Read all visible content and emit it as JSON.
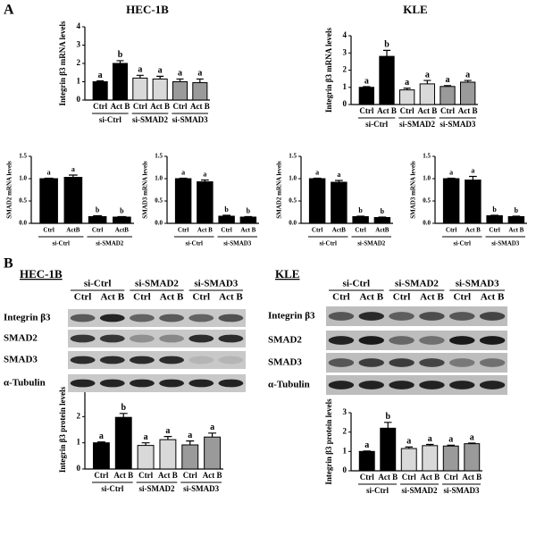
{
  "figure": {
    "panel_a": "A",
    "panel_b": "B"
  },
  "chart_data": [
    {
      "type": "bar",
      "title": "HEC-1B",
      "ylabel": "Integrin β3 mRNA levels",
      "categories": [
        "Ctrl",
        "Act B",
        "Ctrl",
        "Act B",
        "Ctrl",
        "Act B"
      ],
      "groups": [
        "si-Ctrl",
        "si-SMAD2",
        "si-SMAD3"
      ],
      "values": [
        1.0,
        2.0,
        1.2,
        1.15,
        1.0,
        0.95
      ],
      "errors": [
        0.05,
        0.15,
        0.15,
        0.15,
        0.15,
        0.2
      ],
      "annotations": [
        "a",
        "b",
        "a",
        "a",
        "a",
        "a"
      ],
      "colors": [
        "#000000",
        "#000000",
        "#d9d9d9",
        "#d9d9d9",
        "#9a9a9a",
        "#9a9a9a"
      ],
      "ylim": [
        0,
        4
      ],
      "yticks": [
        0,
        1,
        2,
        3,
        4
      ]
    },
    {
      "type": "bar",
      "title": "KLE",
      "ylabel": "Integrin β3 mRNA levels",
      "categories": [
        "Ctrl",
        "Act B",
        "Ctrl",
        "Act B",
        "Ctrl",
        "Act B"
      ],
      "groups": [
        "si-Ctrl",
        "si-SMAD2",
        "si-SMAD3"
      ],
      "values": [
        1.0,
        2.8,
        0.85,
        1.2,
        1.05,
        1.3
      ],
      "errors": [
        0.04,
        0.35,
        0.1,
        0.2,
        0.05,
        0.1
      ],
      "annotations": [
        "a",
        "b",
        "a",
        "a",
        "a",
        "a"
      ],
      "colors": [
        "#000000",
        "#000000",
        "#d9d9d9",
        "#d9d9d9",
        "#9a9a9a",
        "#9a9a9a"
      ],
      "ylim": [
        0,
        4
      ],
      "yticks": [
        0,
        1,
        2,
        3,
        4
      ]
    },
    {
      "type": "bar",
      "ylabel": "SMAD2 mRNA levels",
      "categories": [
        "Ctrl",
        "ActB",
        "Ctrl",
        "ActB"
      ],
      "groups": [
        "si-Ctrl",
        "si-SMAD2"
      ],
      "values": [
        1.0,
        1.03,
        0.15,
        0.14
      ],
      "errors": [
        0.01,
        0.05,
        0.02,
        0.01
      ],
      "annotations": [
        "a",
        "a",
        "b",
        "b"
      ],
      "color": "#000000",
      "ylim": [
        0,
        1.5
      ],
      "yticks": [
        {
          "value": 0,
          "label": "0.0"
        },
        {
          "value": 0.5,
          "label": "0.5"
        },
        {
          "value": 1,
          "label": "1.0"
        },
        {
          "value": 1.5,
          "label": "1.5"
        }
      ]
    },
    {
      "type": "bar",
      "ylabel": "SMAD3 mRNA levels",
      "categories": [
        "Ctrl",
        "Act B",
        "Ctrl",
        "Act B"
      ],
      "groups": [
        "si-Ctrl",
        "si-SMAD3"
      ],
      "values": [
        1.0,
        0.93,
        0.16,
        0.14
      ],
      "errors": [
        0.01,
        0.04,
        0.02,
        0.01
      ],
      "annotations": [
        "a",
        "a",
        "b",
        "b"
      ],
      "color": "#000000",
      "ylim": [
        0,
        1.5
      ],
      "yticks": [
        {
          "value": 0,
          "label": "0.0"
        },
        {
          "value": 0.5,
          "label": "0.5"
        },
        {
          "value": 1,
          "label": "1.0"
        },
        {
          "value": 1.5,
          "label": "1.5"
        }
      ]
    },
    {
      "type": "bar",
      "ylabel": "SMAD2 mRNA levels",
      "categories": [
        "Ctrl",
        "ActB",
        "Ctrl",
        "ActB"
      ],
      "groups": [
        "si-Ctrl",
        "si-SMAD2"
      ],
      "values": [
        1.0,
        0.92,
        0.15,
        0.13
      ],
      "errors": [
        0.01,
        0.04,
        0.01,
        0.01
      ],
      "annotations": [
        "a",
        "a",
        "b",
        "b"
      ],
      "color": "#000000",
      "ylim": [
        0,
        1.5
      ],
      "yticks": [
        {
          "value": 0,
          "label": "0.0"
        },
        {
          "value": 0.5,
          "label": "0.5"
        },
        {
          "value": 1,
          "label": "1.0"
        },
        {
          "value": 1.5,
          "label": "1.5"
        }
      ]
    },
    {
      "type": "bar",
      "ylabel": "SMAD3 mRNA levels",
      "categories": [
        "Ctrl",
        "Act B",
        "Ctrl",
        "Act B"
      ],
      "groups": [
        "si-Ctrl",
        "si-SMAD3"
      ],
      "values": [
        1.0,
        0.97,
        0.17,
        0.15
      ],
      "errors": [
        0.01,
        0.08,
        0.01,
        0.01
      ],
      "annotations": [
        "a",
        "a",
        "b",
        "b"
      ],
      "color": "#000000",
      "ylim": [
        0,
        1.5
      ],
      "yticks": [
        {
          "value": 0,
          "label": "0.0"
        },
        {
          "value": 0.5,
          "label": "0.5"
        },
        {
          "value": 1,
          "label": "1.0"
        },
        {
          "value": 1.5,
          "label": "1.5"
        }
      ]
    },
    {
      "type": "bar",
      "ylabel": "Integrin β3 protein levels",
      "categories": [
        "Ctrl",
        "Act B",
        "Ctrl",
        "Act B",
        "Ctrl",
        "Act B"
      ],
      "groups": [
        "si-Ctrl",
        "si-SMAD2",
        "si-SMAD3"
      ],
      "values": [
        1.0,
        1.97,
        0.9,
        1.12,
        0.92,
        1.22
      ],
      "errors": [
        0.03,
        0.15,
        0.1,
        0.12,
        0.15,
        0.15
      ],
      "annotations": [
        "a",
        "b",
        "a",
        "a",
        "a",
        "a"
      ],
      "colors": [
        "#000000",
        "#000000",
        "#d9d9d9",
        "#d9d9d9",
        "#9a9a9a",
        "#9a9a9a"
      ],
      "ylim": [
        0,
        3
      ],
      "yticks": [
        0,
        1,
        2,
        3
      ]
    },
    {
      "type": "bar",
      "ylabel": "Integrin β3 protein levels",
      "categories": [
        "Ctrl",
        "Act B",
        "Ctrl",
        "Act B",
        "Ctrl",
        "Act B"
      ],
      "groups": [
        "si-Ctrl",
        "si-SMAD2",
        "si-SMAD3"
      ],
      "values": [
        1.0,
        2.2,
        1.15,
        1.3,
        1.28,
        1.4
      ],
      "errors": [
        0.02,
        0.3,
        0.08,
        0.06,
        0.04,
        0.03
      ],
      "annotations": [
        "a",
        "b",
        "a",
        "a",
        "a",
        "a"
      ],
      "colors": [
        "#000000",
        "#000000",
        "#d9d9d9",
        "#d9d9d9",
        "#9a9a9a",
        "#9a9a9a"
      ],
      "ylim": [
        0,
        3
      ],
      "yticks": [
        0,
        1,
        2,
        3
      ]
    }
  ],
  "blots": [
    {
      "title": "HEC-1B",
      "groups": [
        "si-Ctrl",
        "si-SMAD2",
        "si-SMAD3"
      ],
      "lanes": [
        "Ctrl",
        "Act B",
        "Ctrl",
        "Act B",
        "Ctrl",
        "Act B"
      ],
      "rows": [
        "Integrin β3",
        "SMAD2",
        "SMAD3",
        "α-Tubulin"
      ]
    },
    {
      "title": "KLE",
      "groups": [
        "si-Ctrl",
        "si-SMAD2",
        "si-SMAD3"
      ],
      "lanes": [
        "Ctrl",
        "Act B",
        "Ctrl",
        "Act B",
        "Ctrl",
        "Act B"
      ],
      "rows": [
        "Integrin β3",
        "SMAD2",
        "SMAD3",
        "α-Tubulin"
      ]
    }
  ]
}
